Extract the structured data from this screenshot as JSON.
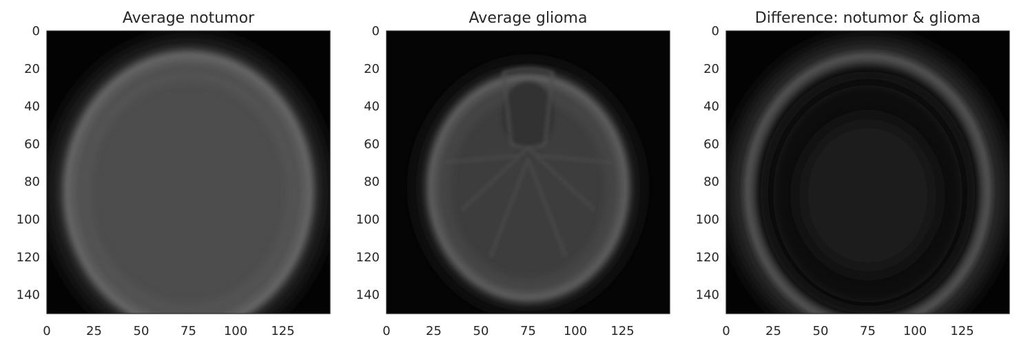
{
  "chart_data": [
    {
      "type": "heatmap",
      "title": "Average notumor",
      "image_size": [
        150,
        150
      ],
      "colormap": "gray",
      "grid": false,
      "x_ticks": [
        0,
        25,
        50,
        75,
        100,
        125
      ],
      "y_ticks": [
        0,
        20,
        40,
        60,
        80,
        100,
        120,
        140
      ],
      "xlim": [
        0,
        150
      ],
      "ylim": [
        150,
        0
      ],
      "content": {
        "center": [
          75,
          85
        ],
        "radii": [
          66,
          74
        ],
        "fill_level": 0.3,
        "ring_level": 0.37,
        "inner_ring_level": 0.33,
        "halo_level": 0.15,
        "background_level": 0.01,
        "features": []
      }
    },
    {
      "type": "heatmap",
      "title": "Average glioma",
      "image_size": [
        150,
        150
      ],
      "colormap": "gray",
      "grid": false,
      "x_ticks": [
        0,
        25,
        50,
        75,
        100,
        125
      ],
      "y_ticks": [
        0,
        20,
        40,
        60,
        80,
        100,
        120,
        140
      ],
      "xlim": [
        0,
        150
      ],
      "ylim": [
        150,
        0
      ],
      "content": {
        "center": [
          75,
          83
        ],
        "radii": [
          53,
          60
        ],
        "fill_level": 0.24,
        "ring_level": 0.34,
        "inner_ring_level": 0.28,
        "halo_level": 0.1,
        "background_level": 0.02,
        "features": [
          "ventricle",
          "central-lines"
        ]
      }
    },
    {
      "type": "heatmap",
      "title": "Difference: notumor & glioma",
      "image_size": [
        150,
        150
      ],
      "colormap": "gray",
      "grid": false,
      "x_ticks": [
        0,
        25,
        50,
        75,
        100,
        125
      ],
      "y_ticks": [
        0,
        20,
        40,
        60,
        80,
        100,
        120,
        140
      ],
      "xlim": [
        0,
        150
      ],
      "ylim": [
        150,
        0
      ],
      "content": {
        "center": [
          75,
          85
        ],
        "radii": [
          66,
          74
        ],
        "fill_level": 0.09,
        "ring_level": 0.3,
        "inner_ring_level": 0.04,
        "halo_level": 0.17,
        "background_level": 0.01,
        "features": [
          "dark-inner-band"
        ]
      }
    }
  ],
  "colors": {
    "background": "#ffffff",
    "axes_frame": "#262626",
    "text": "#262626"
  }
}
